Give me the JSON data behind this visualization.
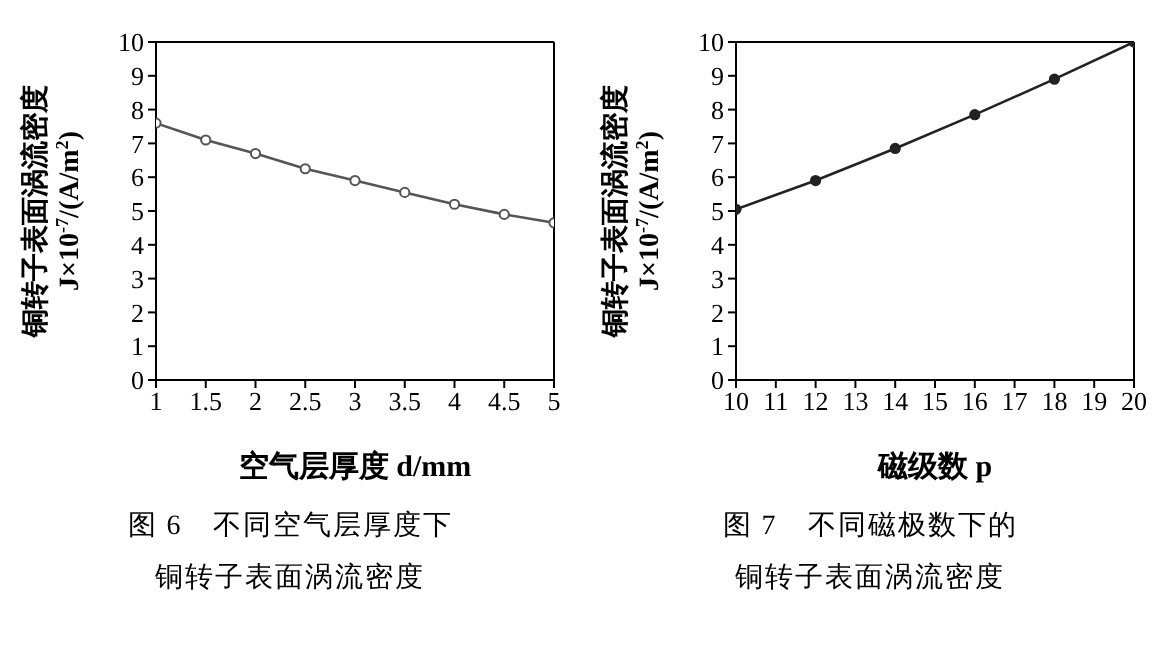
{
  "chart_data": [
    {
      "type": "line",
      "title": "图 6　不同空气层厚度下",
      "subtitle": "铜转子表面涡流密度",
      "xlabel": "空气层厚度 d/mm",
      "ylabel": "铜转子表面涡流密度\nJ×10$^{-7}$/(A/m$^{2}$)",
      "x": [
        1,
        1.5,
        2,
        2.5,
        3,
        3.5,
        4,
        4.5,
        5
      ],
      "series": [
        {
          "color": "#555555",
          "values": [
            7.6,
            7.1,
            6.7,
            6.25,
            5.9,
            5.55,
            5.2,
            4.9,
            4.65
          ]
        }
      ],
      "xlim": [
        1,
        5
      ],
      "xticks": [
        1,
        1.5,
        2,
        2.5,
        3,
        3.5,
        4,
        4.5,
        5
      ],
      "ylim": [
        0,
        10
      ],
      "yticks": [
        0,
        1,
        2,
        3,
        4,
        5,
        6,
        7,
        8,
        9,
        10
      ],
      "grid": false,
      "legend": false,
      "marker": "circle",
      "line_style": "solid"
    },
    {
      "type": "line",
      "title": "图 7　不同磁极数下的",
      "subtitle": "铜转子表面涡流密度",
      "xlabel": "磁级数 p",
      "ylabel": "铜转子表面涡流密度\nJ×10$^{-7}$/(A/m$^{2}$)",
      "x": [
        10,
        12,
        14,
        16,
        18,
        20
      ],
      "series": [
        {
          "color": "#222222",
          "values": [
            5.05,
            5.9,
            6.85,
            7.85,
            8.9,
            10
          ]
        }
      ],
      "xlim": [
        10,
        20
      ],
      "xticks": [
        10,
        11,
        12,
        13,
        14,
        15,
        16,
        17,
        18,
        19,
        20
      ],
      "ylim": [
        0,
        10
      ],
      "yticks": [
        0,
        1,
        2,
        3,
        4,
        5,
        6,
        7,
        8,
        9,
        10
      ],
      "grid": false,
      "legend": false,
      "marker": "circle",
      "line_style": "solid"
    }
  ]
}
